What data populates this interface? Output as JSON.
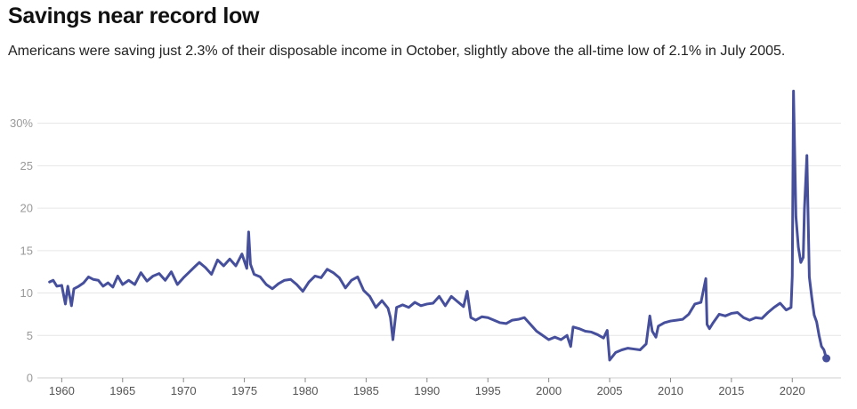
{
  "chart_data": {
    "type": "line",
    "title": "Savings near record low",
    "subtitle": "Americans were saving just 2.3% of their disposable income in October, slightly above the all-time low of 2.1% in July 2005.",
    "xlabel": "",
    "ylabel": "",
    "xlim": [
      1958.0,
      2024.0
    ],
    "ylim": [
      0,
      33
    ],
    "x_ticks": [
      1960,
      1965,
      1970,
      1975,
      1980,
      1985,
      1990,
      1995,
      2000,
      2005,
      2010,
      2015,
      2020
    ],
    "y_ticks": [
      0,
      5,
      10,
      15,
      20,
      25,
      30
    ],
    "y_tick_labels": [
      "0",
      "5",
      "10",
      "15",
      "20",
      "25",
      "30%"
    ],
    "grid": true,
    "line_color": "#464f9c",
    "series": [
      {
        "name": "",
        "x": [
          1959.0,
          1959.3,
          1959.6,
          1960.0,
          1960.3,
          1960.5,
          1960.8,
          1961.0,
          1961.4,
          1961.8,
          1962.2,
          1962.6,
          1963.0,
          1963.4,
          1963.8,
          1964.2,
          1964.6,
          1965.0,
          1965.5,
          1966.0,
          1966.5,
          1967.0,
          1967.5,
          1968.0,
          1968.5,
          1969.0,
          1969.5,
          1970.0,
          1970.5,
          1971.0,
          1971.3,
          1971.8,
          1972.3,
          1972.8,
          1973.3,
          1973.8,
          1974.3,
          1974.8,
          1975.2,
          1975.35,
          1975.5,
          1975.8,
          1976.3,
          1976.8,
          1977.3,
          1977.8,
          1978.3,
          1978.8,
          1979.3,
          1979.8,
          1980.3,
          1980.8,
          1981.3,
          1981.8,
          1982.3,
          1982.8,
          1983.3,
          1983.8,
          1984.3,
          1984.8,
          1985.3,
          1985.8,
          1986.3,
          1986.8,
          1987.0,
          1987.2,
          1987.5,
          1988.0,
          1988.5,
          1989.0,
          1989.5,
          1990.0,
          1990.5,
          1991.0,
          1991.5,
          1992.0,
          1992.5,
          1993.0,
          1993.3,
          1993.6,
          1994.0,
          1994.5,
          1995.0,
          1995.5,
          1996.0,
          1996.5,
          1997.0,
          1997.5,
          1998.0,
          1998.5,
          1999.0,
          1999.5,
          2000.0,
          2000.5,
          2001.0,
          2001.5,
          2001.8,
          2002.0,
          2002.5,
          2003.0,
          2003.5,
          2004.0,
          2004.5,
          2004.8,
          2005.0,
          2005.5,
          2006.0,
          2006.5,
          2007.0,
          2007.5,
          2008.0,
          2008.3,
          2008.5,
          2008.8,
          2009.0,
          2009.5,
          2010.0,
          2010.5,
          2011.0,
          2011.5,
          2012.0,
          2012.5,
          2012.9,
          2013.0,
          2013.2,
          2013.5,
          2014.0,
          2014.5,
          2015.0,
          2015.5,
          2016.0,
          2016.5,
          2017.0,
          2017.5,
          2018.0,
          2018.5,
          2019.0,
          2019.5,
          2019.9,
          2020.0,
          2020.1,
          2020.3,
          2020.5,
          2020.7,
          2020.9,
          2021.0,
          2021.2,
          2021.4,
          2021.6,
          2021.8,
          2022.0,
          2022.2,
          2022.4,
          2022.6,
          2022.8
        ],
        "values": [
          11.3,
          11.5,
          10.8,
          10.9,
          8.7,
          10.8,
          8.5,
          10.5,
          10.8,
          11.2,
          11.9,
          11.6,
          11.5,
          10.8,
          11.2,
          10.7,
          12.0,
          11.0,
          11.5,
          11.0,
          12.4,
          11.4,
          12.0,
          12.3,
          11.5,
          12.5,
          11.0,
          11.8,
          12.5,
          13.2,
          13.6,
          13.0,
          12.2,
          13.9,
          13.2,
          14.0,
          13.2,
          14.6,
          12.9,
          17.2,
          13.4,
          12.2,
          11.9,
          11.0,
          10.5,
          11.1,
          11.5,
          11.6,
          11.0,
          10.2,
          11.3,
          12.0,
          11.8,
          12.8,
          12.4,
          11.8,
          10.6,
          11.5,
          11.9,
          10.3,
          9.6,
          8.3,
          9.1,
          8.2,
          7.1,
          4.5,
          8.3,
          8.6,
          8.3,
          8.9,
          8.5,
          8.7,
          8.8,
          9.6,
          8.5,
          9.6,
          9.0,
          8.4,
          10.2,
          7.1,
          6.8,
          7.2,
          7.1,
          6.8,
          6.5,
          6.4,
          6.8,
          6.9,
          7.1,
          6.3,
          5.5,
          5.0,
          4.5,
          4.8,
          4.5,
          5.0,
          3.7,
          6.0,
          5.8,
          5.5,
          5.4,
          5.1,
          4.7,
          5.6,
          2.1,
          3.0,
          3.3,
          3.5,
          3.4,
          3.3,
          4.0,
          7.3,
          5.5,
          4.8,
          6.1,
          6.5,
          6.7,
          6.8,
          6.9,
          7.5,
          8.7,
          8.9,
          11.7,
          6.3,
          5.8,
          6.5,
          7.5,
          7.3,
          7.6,
          7.7,
          7.1,
          6.8,
          7.1,
          7.0,
          7.7,
          8.3,
          8.8,
          8.0,
          8.3,
          12.0,
          33.8,
          19.0,
          15.4,
          13.6,
          14.2,
          19.9,
          26.2,
          11.9,
          9.5,
          7.4,
          6.6,
          5.0,
          3.7,
          3.3,
          2.3
        ]
      }
    ]
  }
}
